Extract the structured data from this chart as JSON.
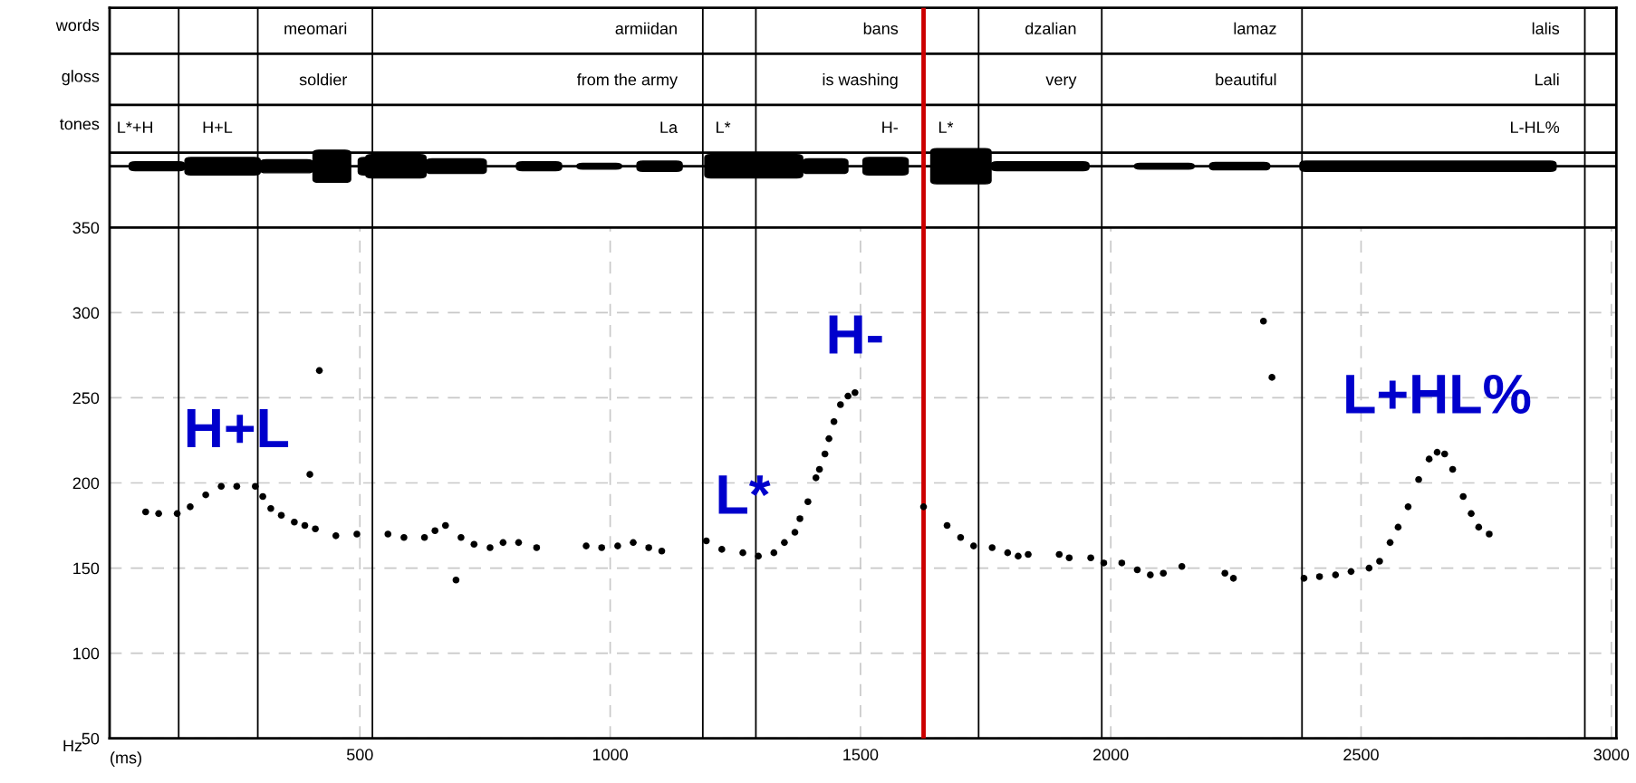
{
  "chart_data": {
    "type": "scatter",
    "xlabel": "(ms)",
    "ylabel": "Hz",
    "color": "#000000",
    "marker": "circle",
    "x": [
      72,
      98,
      135,
      161,
      192,
      223,
      254,
      291,
      306,
      322,
      343,
      369,
      390,
      411,
      400,
      419,
      452,
      494,
      556,
      588,
      629,
      650,
      671,
      692,
      702,
      728,
      760,
      786,
      817,
      853,
      952,
      983,
      1015,
      1046,
      1077,
      1103,
      1192,
      1223,
      1265,
      1296,
      1327,
      1348,
      1369,
      1379,
      1395,
      1411,
      1418,
      1429,
      1437,
      1447,
      1460,
      1475,
      1489,
      1626,
      1673,
      1700,
      1726,
      1763,
      1794,
      1815,
      1835,
      1897,
      1917,
      1960,
      1986,
      2022,
      2053,
      2079,
      2105,
      2142,
      2228,
      2245,
      2305,
      2322,
      2386,
      2417,
      2449,
      2480,
      2516,
      2537,
      2558,
      2574,
      2594,
      2615,
      2636,
      2652,
      2667,
      2683,
      2704,
      2720,
      2735,
      2756
    ],
    "values": [
      183,
      182,
      182,
      186,
      193,
      198,
      198,
      198,
      192,
      185,
      181,
      177,
      175,
      173,
      205,
      266,
      169,
      170,
      170,
      168,
      168,
      172,
      175,
      143,
      168,
      164,
      162,
      165,
      165,
      162,
      163,
      162,
      163,
      165,
      162,
      160,
      166,
      161,
      159,
      157,
      159,
      165,
      171,
      179,
      189,
      203,
      208,
      217,
      226,
      236,
      246,
      251,
      253,
      186,
      175,
      168,
      163,
      162,
      159,
      157,
      158,
      158,
      156,
      156,
      153,
      153,
      149,
      146,
      147,
      151,
      147,
      144,
      295,
      262,
      144,
      145,
      146,
      148,
      150,
      154,
      165,
      174,
      186,
      202,
      214,
      218,
      217,
      208,
      192,
      182,
      174,
      170
    ],
    "xlim": [
      0,
      3010
    ],
    "ylim": [
      50,
      479
    ],
    "xticks": [
      500,
      1000,
      1500,
      2000,
      2500,
      3000
    ],
    "yticks": [
      50,
      100,
      150,
      200,
      250,
      300,
      350,
      {
        "value": 411,
        "label": "tones"
      },
      {
        "value": 439,
        "label": "gloss"
      },
      {
        "value": 469,
        "label": "words"
      }
    ],
    "grid": true,
    "ref_lines": [
      {
        "axis": "y",
        "value": 350
      },
      {
        "axis": "y",
        "value": 386
      },
      {
        "axis": "y",
        "value": 394
      },
      {
        "axis": "y",
        "value": 422
      },
      {
        "axis": "y",
        "value": 452
      },
      {
        "axis": "x",
        "value": 138
      },
      {
        "axis": "x",
        "value": 296
      },
      {
        "axis": "x",
        "value": 525
      },
      {
        "axis": "x",
        "value": 1185
      },
      {
        "axis": "x",
        "value": 1291
      },
      {
        "axis": "x",
        "value": 1626,
        "color": "#cc0000"
      },
      {
        "axis": "x",
        "value": 1736
      },
      {
        "axis": "x",
        "value": 1982
      },
      {
        "axis": "x",
        "value": 2382
      },
      {
        "axis": "x",
        "value": 2947
      }
    ],
    "annotations": [
      {
        "text": "meomari",
        "x": 525,
        "y": 452
      },
      {
        "text": "armiidan",
        "x": 1185,
        "y": 452
      },
      {
        "text": "bans",
        "x": 1626,
        "y": 452
      },
      {
        "text": "dzalian",
        "x": 1982,
        "y": 452
      },
      {
        "text": "lamaz",
        "x": 2382,
        "y": 452
      },
      {
        "text": "lalis",
        "x": 2947,
        "y": 452
      },
      {
        "text": "soldier",
        "x": 525,
        "y": 422
      },
      {
        "text": "from the army",
        "x": 1185,
        "y": 422
      },
      {
        "text": "is washing",
        "x": 1626,
        "y": 422
      },
      {
        "text": "very",
        "x": 1982,
        "y": 422
      },
      {
        "text": "beautiful",
        "x": 2382,
        "y": 422
      },
      {
        "text": "Lali",
        "x": 2947,
        "y": 422
      },
      {
        "text": "L*+H",
        "x": 138,
        "y": 394
      },
      {
        "text": "H+L",
        "x": 296,
        "y": 394
      },
      {
        "text": "La",
        "x": 1185,
        "y": 394
      },
      {
        "text": "L*",
        "x": 1291,
        "y": 394
      },
      {
        "text": "H-",
        "x": 1626,
        "y": 394
      },
      {
        "text": "L*",
        "x": 1736,
        "y": 394
      },
      {
        "text": "L-HL%",
        "x": 2947,
        "y": 394
      },
      {
        "text": "H+L",
        "x": 254,
        "y": 198
      },
      {
        "text": "L*",
        "x": 1265,
        "y": 159
      },
      {
        "text": "H-",
        "x": 1489,
        "y": 253
      },
      {
        "text": "L+HL%",
        "x": 2652,
        "y": 218
      }
    ]
  }
}
